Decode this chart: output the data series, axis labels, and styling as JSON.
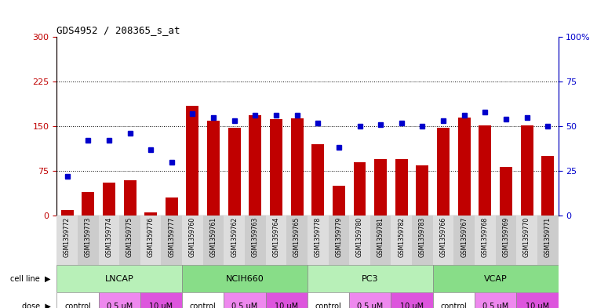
{
  "title": "GDS4952 / 208365_s_at",
  "samples": [
    "GSM1359772",
    "GSM1359773",
    "GSM1359774",
    "GSM1359775",
    "GSM1359776",
    "GSM1359777",
    "GSM1359760",
    "GSM1359761",
    "GSM1359762",
    "GSM1359763",
    "GSM1359764",
    "GSM1359765",
    "GSM1359778",
    "GSM1359779",
    "GSM1359780",
    "GSM1359781",
    "GSM1359782",
    "GSM1359783",
    "GSM1359766",
    "GSM1359767",
    "GSM1359768",
    "GSM1359769",
    "GSM1359770",
    "GSM1359771"
  ],
  "counts": [
    10,
    40,
    55,
    60,
    5,
    30,
    185,
    160,
    148,
    168,
    162,
    163,
    120,
    50,
    90,
    95,
    95,
    85,
    148,
    165,
    152,
    82,
    152,
    100
  ],
  "percentiles": [
    22,
    42,
    42,
    46,
    37,
    30,
    57,
    55,
    53,
    56,
    56,
    56,
    52,
    38,
    50,
    51,
    52,
    50,
    53,
    56,
    58,
    54,
    55,
    50
  ],
  "cell_lines": [
    "LNCAP",
    "NCIH660",
    "PC3",
    "VCAP"
  ],
  "doses": [
    "control",
    "0.5 uM",
    "10 uM",
    "control",
    "0.5 uM",
    "10 uM",
    "control",
    "0.5 uM",
    "10 uM",
    "control",
    "0.5 uM",
    "10 uM"
  ],
  "bar_color": "#c00000",
  "dot_color": "#0000cc",
  "ylim_left": [
    0,
    300
  ],
  "ylim_right": [
    0,
    100
  ],
  "yticks_left": [
    0,
    75,
    150,
    225,
    300
  ],
  "yticks_right": [
    0,
    25,
    50,
    75,
    100
  ],
  "cell_line_fill_even": "#b8f0b8",
  "cell_line_fill_odd": "#88dd88",
  "dose_colors": [
    "#ffffff",
    "#ee88ee",
    "#dd55dd",
    "#ffffff",
    "#ee88ee",
    "#dd55dd",
    "#ffffff",
    "#ee88ee",
    "#dd55dd",
    "#ffffff",
    "#ee88ee",
    "#dd55dd"
  ],
  "label_bg": "#cccccc",
  "fig_bg": "#ffffff"
}
